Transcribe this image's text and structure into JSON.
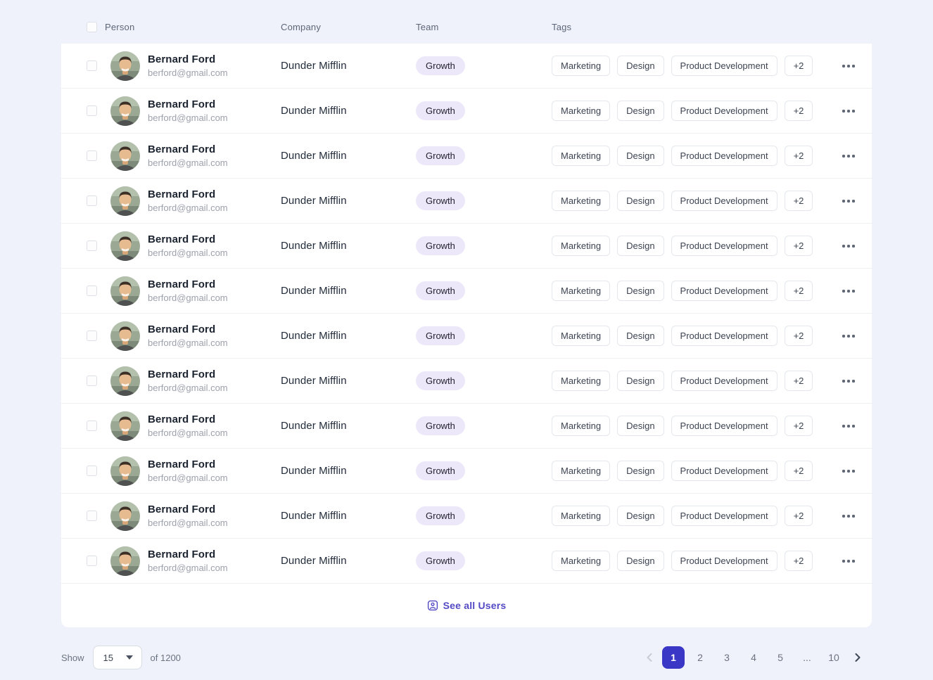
{
  "table": {
    "columns": {
      "person": "Person",
      "company": "Company",
      "team": "Team",
      "tags": "Tags"
    },
    "row_count": 12,
    "row": {
      "name": "Bernard Ford",
      "email": "berford@gmail.com",
      "company": "Dunder Mifflin",
      "team": "Growth",
      "tags": [
        "Marketing",
        "Design",
        "Product Development"
      ],
      "more_tags": "+2"
    },
    "see_all_label": "See all Users"
  },
  "pagination": {
    "show_label": "Show",
    "page_size": "15",
    "of_label": "of 1200",
    "pages": [
      "1",
      "2",
      "3",
      "4",
      "5",
      "...",
      "10"
    ],
    "active_page": "1"
  },
  "icons": {
    "row_menu": "ellipsis-icon",
    "see_all": "user-square-icon",
    "prev": "chevron-left-icon",
    "next": "chevron-right-icon",
    "select_caret": "caret-down-icon"
  },
  "colors": {
    "page_background": "#eff2fa",
    "accent": "#3b37c6",
    "team_badge_background": "#ece8fa",
    "link": "#5349c5",
    "divider": "#eef0f4"
  }
}
